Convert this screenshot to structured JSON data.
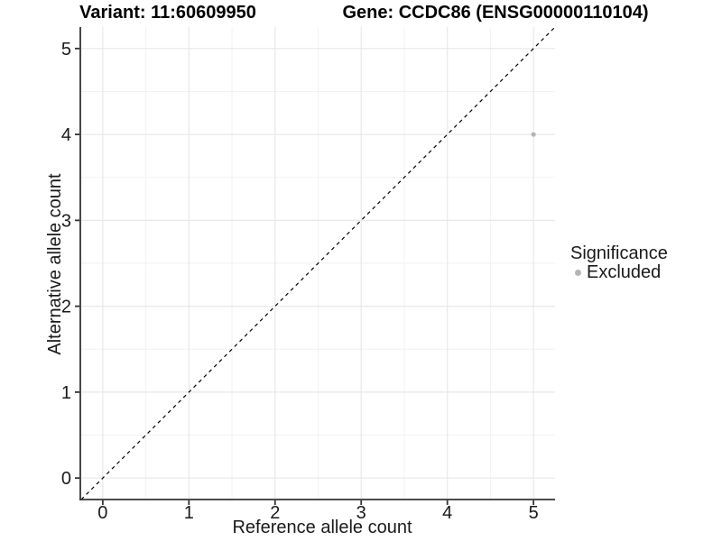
{
  "chart_data": {
    "type": "scatter",
    "title_left": "Variant: 11:60609950",
    "title_right": "Gene: CCDC86 (ENSG00000110104)",
    "xlabel": "Reference allele count",
    "ylabel": "Alternative allele count",
    "xlim": [
      -0.25,
      5.25
    ],
    "ylim": [
      -0.25,
      5.25
    ],
    "xticks": [
      0,
      1,
      2,
      3,
      4,
      5
    ],
    "yticks": [
      0,
      1,
      2,
      3,
      4,
      5
    ],
    "grid": "major-and-minor",
    "points": [
      {
        "x": 5,
        "y": 4,
        "series": "Excluded"
      }
    ],
    "reference_line": {
      "kind": "identity",
      "style": "dashed",
      "color": "#000000"
    },
    "legend": {
      "title": "Significance",
      "position": "right",
      "entries": [
        {
          "label": "Excluded",
          "color": "#b4b4b4"
        }
      ]
    },
    "colors": {
      "background": "#ffffff",
      "grid_major": "#e8e8e8",
      "grid_minor": "#f2f2f2",
      "axis_line": "#333333",
      "tick_label": "#1a1a1a",
      "point": "#b4b4b4"
    }
  }
}
